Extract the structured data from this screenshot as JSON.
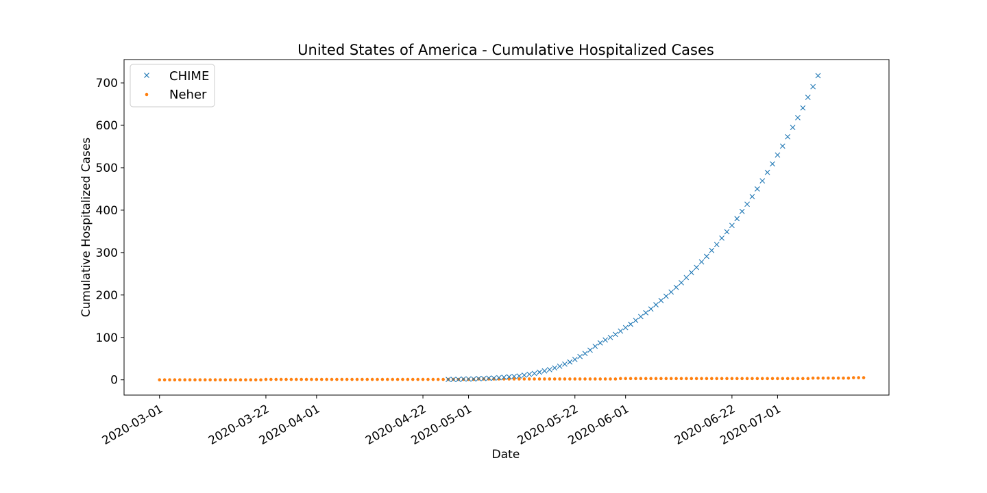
{
  "chart_data": {
    "type": "scatter",
    "title": "United States of America - Cumulative Hospitalized Cases",
    "xlabel": "Date",
    "ylabel": "Cumulative Hospitalized Cases",
    "xlim": [
      "2020-02-23",
      "2020-07-23"
    ],
    "ylim": [
      -36,
      755
    ],
    "x_ticks": [
      "2020-03-01",
      "2020-03-22",
      "2020-04-01",
      "2020-04-22",
      "2020-05-01",
      "2020-05-22",
      "2020-06-01",
      "2020-06-22",
      "2020-07-01"
    ],
    "y_ticks": [
      0,
      100,
      200,
      300,
      400,
      500,
      600,
      700
    ],
    "grid": false,
    "legend_position": "top-left",
    "series": [
      {
        "name": "CHIME",
        "marker": "x",
        "color": "#1f77b4",
        "points": [
          [
            "2020-04-27",
            1
          ],
          [
            "2020-04-28",
            1
          ],
          [
            "2020-04-29",
            1
          ],
          [
            "2020-04-30",
            2
          ],
          [
            "2020-05-01",
            2
          ],
          [
            "2020-05-02",
            2
          ],
          [
            "2020-05-03",
            3
          ],
          [
            "2020-05-04",
            3
          ],
          [
            "2020-05-05",
            4
          ],
          [
            "2020-05-06",
            4
          ],
          [
            "2020-05-07",
            5
          ],
          [
            "2020-05-08",
            6
          ],
          [
            "2020-05-09",
            7
          ],
          [
            "2020-05-10",
            8
          ],
          [
            "2020-05-11",
            9
          ],
          [
            "2020-05-12",
            11
          ],
          [
            "2020-05-13",
            13
          ],
          [
            "2020-05-14",
            15
          ],
          [
            "2020-05-15",
            18
          ],
          [
            "2020-05-16",
            21
          ],
          [
            "2020-05-17",
            24
          ],
          [
            "2020-05-18",
            28
          ],
          [
            "2020-05-19",
            32
          ],
          [
            "2020-05-20",
            37
          ],
          [
            "2020-05-21",
            42
          ],
          [
            "2020-05-22",
            48
          ],
          [
            "2020-05-23",
            55
          ],
          [
            "2020-05-24",
            62
          ],
          [
            "2020-05-25",
            70
          ],
          [
            "2020-05-26",
            79
          ],
          [
            "2020-05-27",
            87
          ],
          [
            "2020-05-28",
            94
          ],
          [
            "2020-05-29",
            100
          ],
          [
            "2020-05-30",
            107
          ],
          [
            "2020-05-31",
            115
          ],
          [
            "2020-06-01",
            123
          ],
          [
            "2020-06-02",
            131
          ],
          [
            "2020-06-03",
            140
          ],
          [
            "2020-06-04",
            149
          ],
          [
            "2020-06-05",
            158
          ],
          [
            "2020-06-06",
            167
          ],
          [
            "2020-06-07",
            177
          ],
          [
            "2020-06-08",
            187
          ],
          [
            "2020-06-09",
            197
          ],
          [
            "2020-06-10",
            207
          ],
          [
            "2020-06-11",
            218
          ],
          [
            "2020-06-12",
            229
          ],
          [
            "2020-06-13",
            241
          ],
          [
            "2020-06-14",
            253
          ],
          [
            "2020-06-15",
            265
          ],
          [
            "2020-06-16",
            278
          ],
          [
            "2020-06-17",
            291
          ],
          [
            "2020-06-18",
            305
          ],
          [
            "2020-06-19",
            319
          ],
          [
            "2020-06-20",
            334
          ],
          [
            "2020-06-21",
            349
          ],
          [
            "2020-06-22",
            364
          ],
          [
            "2020-06-23",
            380
          ],
          [
            "2020-06-24",
            397
          ],
          [
            "2020-06-25",
            414
          ],
          [
            "2020-06-26",
            432
          ],
          [
            "2020-06-27",
            450
          ],
          [
            "2020-06-28",
            469
          ],
          [
            "2020-06-29",
            489
          ],
          [
            "2020-06-30",
            509
          ],
          [
            "2020-07-01",
            530
          ],
          [
            "2020-07-02",
            551
          ],
          [
            "2020-07-03",
            573
          ],
          [
            "2020-07-04",
            595
          ],
          [
            "2020-07-05",
            618
          ],
          [
            "2020-07-06",
            641
          ],
          [
            "2020-07-07",
            666
          ],
          [
            "2020-07-08",
            691
          ],
          [
            "2020-07-09",
            717
          ]
        ]
      },
      {
        "name": "Neher",
        "marker": "dot",
        "color": "#ff7f0e",
        "start": "2020-03-01",
        "values": [
          0,
          0,
          0,
          0,
          0,
          0,
          0,
          0,
          0,
          0,
          0,
          0,
          0,
          0,
          0,
          0,
          0,
          0,
          0,
          0,
          0,
          1,
          1,
          1,
          1,
          1,
          1,
          1,
          1,
          1,
          1,
          1,
          1,
          1,
          1,
          1,
          1,
          1,
          1,
          1,
          1,
          1,
          1,
          1,
          1,
          1,
          1,
          1,
          1,
          1,
          1,
          1,
          1,
          1,
          1,
          1,
          1,
          1,
          1,
          1,
          1,
          1,
          1,
          2,
          2,
          2,
          2,
          2,
          2,
          2,
          2,
          2,
          2,
          2,
          2,
          2,
          2,
          2,
          2,
          2,
          2,
          2,
          2,
          2,
          2,
          2,
          2,
          2,
          2,
          2,
          2,
          3,
          3,
          3,
          3,
          3,
          3,
          3,
          3,
          3,
          3,
          3,
          3,
          3,
          3,
          3,
          3,
          3,
          3,
          3,
          3,
          3,
          3,
          3,
          3,
          3,
          3,
          3,
          3,
          3,
          3,
          3,
          3,
          3,
          3,
          3,
          3,
          3,
          3,
          4,
          4,
          4,
          4,
          4,
          4,
          4,
          4,
          5,
          5,
          5
        ]
      }
    ]
  }
}
